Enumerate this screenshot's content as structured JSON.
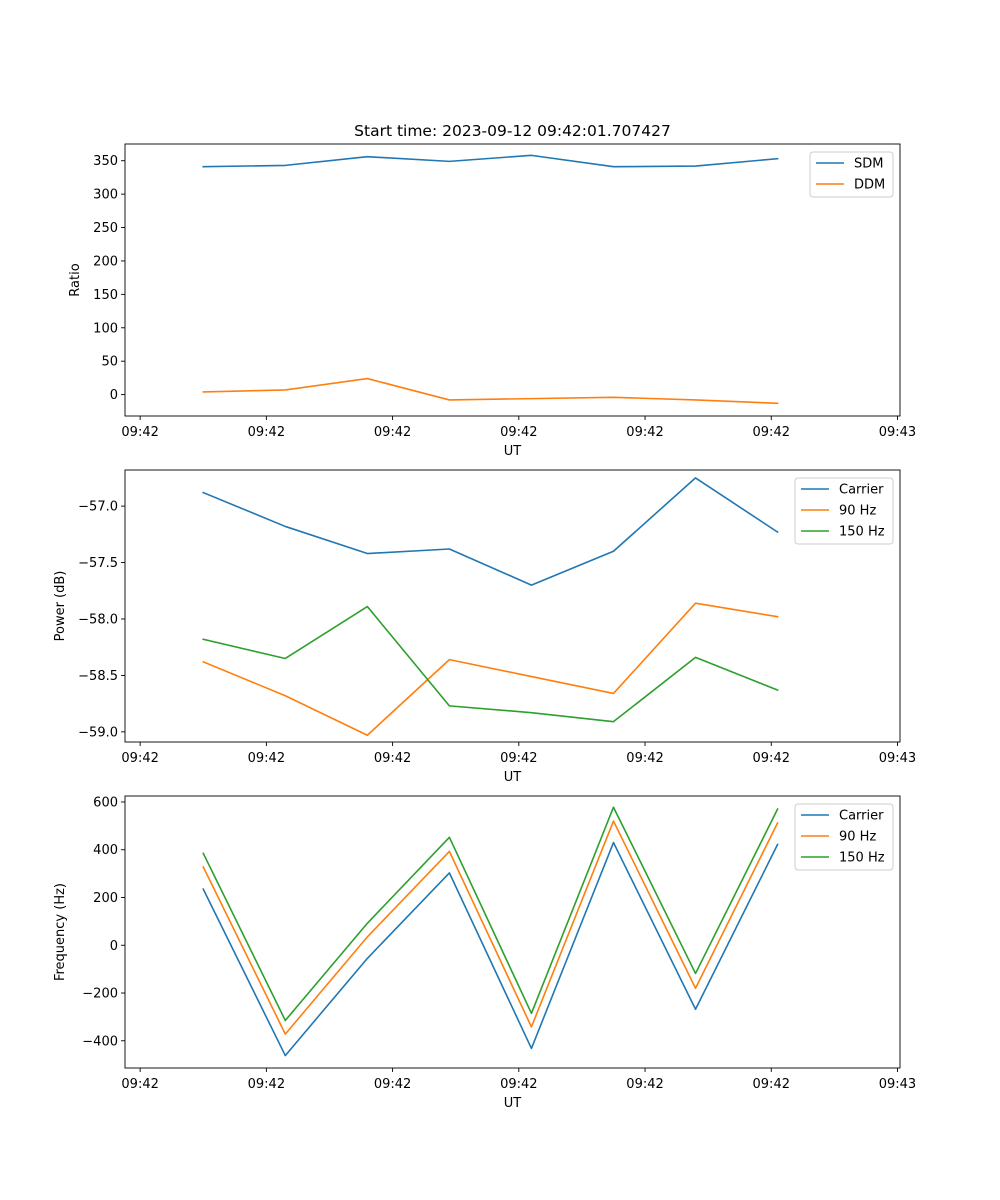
{
  "chart_data": [
    {
      "type": "line",
      "title": "Start time: 2023-09-12 09:42:01.707427",
      "xlabel": "UT",
      "ylabel": "Ratio",
      "xticks": [
        "09:42",
        "09:42",
        "09:42",
        "09:42",
        "09:42",
        "09:42",
        "09:43"
      ],
      "xtick_pos": [
        0,
        1,
        2,
        3,
        4,
        5,
        6
      ],
      "x": [
        0.5,
        1.15,
        1.8,
        2.45,
        3.1,
        3.75,
        4.4,
        5.05
      ],
      "xlim": [
        -0.12,
        6.02
      ],
      "ylim": [
        -32,
        375
      ],
      "yticks": [
        0,
        50,
        100,
        150,
        200,
        250,
        300,
        350
      ],
      "legend_loc": "upper right",
      "series": [
        {
          "name": "SDM",
          "color": "#1f77b4",
          "values": [
            341,
            343,
            356,
            349,
            358,
            341,
            342,
            353
          ]
        },
        {
          "name": "DDM",
          "color": "#ff7f0e",
          "values": [
            4,
            7,
            24,
            -8,
            -6,
            -4,
            -8,
            -13
          ]
        }
      ]
    },
    {
      "type": "line",
      "title": "",
      "xlabel": "UT",
      "ylabel": "Power (dB)",
      "xticks": [
        "09:42",
        "09:42",
        "09:42",
        "09:42",
        "09:42",
        "09:42",
        "09:43"
      ],
      "xtick_pos": [
        0,
        1,
        2,
        3,
        4,
        5,
        6
      ],
      "x": [
        0.5,
        1.15,
        1.8,
        2.45,
        3.1,
        3.75,
        4.4,
        5.05
      ],
      "xlim": [
        -0.12,
        6.02
      ],
      "ylim": [
        -59.09,
        -56.68
      ],
      "yticks": [
        -59.0,
        -58.5,
        -58.0,
        -57.5,
        -57.0
      ],
      "ytick_labels": [
        "−59.0",
        "−58.5",
        "−58.0",
        "−57.5",
        "−57.0"
      ],
      "legend_loc": "upper right",
      "series": [
        {
          "name": "Carrier",
          "color": "#1f77b4",
          "values": [
            -56.88,
            -57.18,
            -57.42,
            -57.38,
            -57.7,
            -57.4,
            -56.75,
            -57.23
          ]
        },
        {
          "name": "90 Hz",
          "color": "#ff7f0e",
          "values": [
            -58.38,
            -58.68,
            -59.03,
            -58.36,
            -58.51,
            -58.66,
            -57.86,
            -57.98
          ]
        },
        {
          "name": "150 Hz",
          "color": "#2ca02c",
          "values": [
            -58.18,
            -58.35,
            -57.89,
            -58.77,
            -58.83,
            -58.91,
            -58.34,
            -58.63
          ]
        }
      ]
    },
    {
      "type": "line",
      "title": "",
      "xlabel": "UT",
      "ylabel": "Frequency (Hz)",
      "xticks": [
        "09:42",
        "09:42",
        "09:42",
        "09:42",
        "09:42",
        "09:42",
        "09:43"
      ],
      "xtick_pos": [
        0,
        1,
        2,
        3,
        4,
        5,
        6
      ],
      "x": [
        0.5,
        1.15,
        1.8,
        2.45,
        3.1,
        3.75,
        4.4,
        5.05
      ],
      "xlim": [
        -0.12,
        6.02
      ],
      "ylim": [
        -514,
        625
      ],
      "yticks": [
        -400,
        -200,
        0,
        200,
        400,
        600
      ],
      "ytick_labels": [
        "−400",
        "−200",
        "0",
        "200",
        "400",
        "600"
      ],
      "legend_loc": "upper right",
      "series": [
        {
          "name": "Carrier",
          "color": "#1f77b4",
          "values": [
            235,
            -462,
            -55,
            303,
            -432,
            430,
            -268,
            422
          ]
        },
        {
          "name": "90 Hz",
          "color": "#ff7f0e",
          "values": [
            328,
            -372,
            35,
            393,
            -342,
            520,
            -180,
            512
          ]
        },
        {
          "name": "150 Hz",
          "color": "#2ca02c",
          "values": [
            385,
            -315,
            92,
            452,
            -285,
            578,
            -118,
            570
          ]
        }
      ]
    }
  ]
}
